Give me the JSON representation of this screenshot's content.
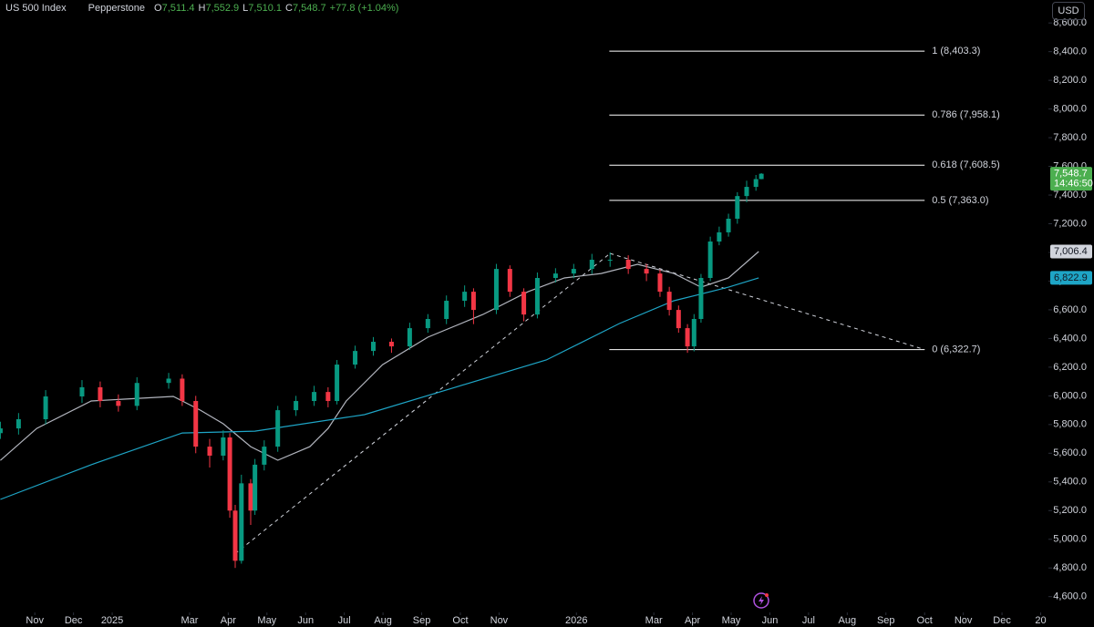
{
  "chart_data": {
    "type": "candlestick",
    "title": "US 500 Index",
    "source": "Pepperstone",
    "ohlc": [
      {
        "key": "O",
        "label": "7,511.4"
      },
      {
        "key": "H",
        "label": "7,552.9"
      },
      {
        "key": "L",
        "label": "7,510.1"
      },
      {
        "key": "C",
        "label": "7,548.7"
      }
    ],
    "change": "+77.8 (+1.04%)",
    "currency": "USD",
    "up_color": "#089981",
    "down_color": "#f23645",
    "x": [
      -0.89,
      -0.42,
      0.28,
      1.22,
      1.69,
      2.16,
      2.64,
      3.46,
      3.81,
      4.16,
      4.52,
      4.87,
      5.04,
      5.18,
      5.34,
      5.58,
      5.69,
      5.93,
      6.28,
      6.75,
      7.22,
      7.58,
      7.81,
      8.28,
      8.75,
      9.22,
      9.69,
      10.16,
      10.64,
      11.11,
      11.34,
      11.93,
      12.28,
      12.64,
      12.99,
      13.46,
      13.93,
      14.4,
      14.87,
      15.34,
      15.81,
      16.16,
      16.4,
      16.64,
      16.87,
      17.04,
      17.22,
      17.46,
      17.69,
      17.93,
      18.16,
      18.4,
      18.64,
      18.78
    ],
    "open": [
      5740,
      5773,
      5837,
      5996,
      6060,
      5964,
      5930,
      6090,
      6120,
      5964,
      5646,
      5583,
      5710,
      5200,
      4850,
      5390,
      5200,
      5520,
      5646,
      5900,
      5964,
      6027,
      5964,
      6218,
      6313,
      6377,
      6345,
      6472,
      6536,
      6663,
      6726,
      6599,
      6885,
      6726,
      6567,
      6822,
      6853,
      6885,
      6949,
      6949,
      6885,
      6853,
      6726,
      6599,
      6472,
      6345,
      6536,
      6822,
      7076,
      7140,
      7235,
      7393,
      7457,
      7511.4
    ],
    "high": [
      5820,
      5880,
      6040,
      6110,
      6100,
      6010,
      6130,
      6160,
      6150,
      6000,
      5700,
      5760,
      5740,
      5240,
      5450,
      5420,
      5560,
      5690,
      5930,
      6000,
      6070,
      6060,
      6250,
      6350,
      6410,
      6400,
      6510,
      6570,
      6700,
      6770,
      6750,
      6920,
      6910,
      6750,
      6860,
      6890,
      6920,
      6990,
      7000,
      6980,
      6920,
      6880,
      6760,
      6630,
      6500,
      6570,
      6850,
      7110,
      7180,
      7270,
      7420,
      7500,
      7540,
      7552.9
    ],
    "low": [
      5700,
      5730,
      5800,
      5950,
      5920,
      5890,
      5900,
      6050,
      5930,
      5600,
      5500,
      5550,
      5150,
      4800,
      4830,
      5100,
      5170,
      5480,
      5610,
      5860,
      5930,
      5920,
      5940,
      6190,
      6280,
      6300,
      6320,
      6440,
      6500,
      6620,
      6500,
      6570,
      6690,
      6520,
      6540,
      6790,
      6820,
      6850,
      6900,
      6850,
      6800,
      6690,
      6560,
      6440,
      6300,
      6310,
      6510,
      6800,
      7050,
      7110,
      7200,
      7350,
      7430,
      7510.1
    ],
    "close": [
      5773,
      5837,
      5996,
      6060,
      5964,
      5930,
      6090,
      6120,
      5964,
      5646,
      5583,
      5710,
      5200,
      4850,
      5390,
      5200,
      5520,
      5646,
      5900,
      5964,
      6027,
      5964,
      6218,
      6313,
      6377,
      6345,
      6472,
      6536,
      6663,
      6726,
      6599,
      6885,
      6726,
      6567,
      6822,
      6853,
      6885,
      6949,
      6949,
      6885,
      6853,
      6726,
      6599,
      6472,
      6345,
      6536,
      6822,
      7076,
      7140,
      7235,
      7393,
      7457,
      7511.4,
      7548.7
    ],
    "series": [
      {
        "color": "#b2b5be",
        "x": [
          -0.89,
          0.05,
          1.46,
          3.58,
          4.28,
          4.87,
          5.58,
          6.28,
          7.11,
          7.58,
          8.05,
          8.99,
          10.16,
          11.58,
          12.75,
          13.69,
          14.64,
          15.58,
          16.52,
          17.22,
          17.93,
          18.71
        ],
        "values": [
          5550,
          5773,
          5964,
          5996,
          5900,
          5805,
          5646,
          5551,
          5646,
          5773,
          5964,
          6218,
          6409,
          6567,
          6726,
          6822,
          6853,
          6917,
          6853,
          6758,
          6822,
          7006.4
        ]
      },
      {
        "color": "#1ea5c6",
        "x": [
          -0.89,
          1.46,
          3.81,
          5.69,
          8.52,
          10.87,
          13.22,
          15.11,
          16.52,
          17.93,
          18.71
        ],
        "values": [
          5278,
          5520,
          5741,
          5754,
          5869,
          6060,
          6250,
          6504,
          6663,
          6758,
          6822.9
        ]
      }
    ],
    "fib": {
      "x_range": [
        14.85,
        23.0
      ],
      "color": "#ffffff",
      "levels": [
        {
          "value": 8403.3,
          "label": "1 (8,403.3)"
        },
        {
          "value": 7958.1,
          "label": "0.786 (7,958.1)"
        },
        {
          "value": 7608.5,
          "label": "0.618 (7,608.5)"
        },
        {
          "value": 7363.0,
          "label": "0.5 (7,363.0)"
        },
        {
          "value": 6322.7,
          "label": "0 (6,322.7)"
        }
      ]
    },
    "trendlines": [
      {
        "x": [
          5.18,
          14.87
        ],
        "values": [
          4900,
          6993
        ]
      },
      {
        "x": [
          14.87,
          23.0
        ],
        "values": [
          6993,
          6322.7
        ]
      }
    ],
    "price_tags": [
      {
        "value": 7548.7,
        "label": "7,548.7",
        "time": "14:46:50",
        "color": "#4caf50",
        "text_color": "#ffffff"
      },
      {
        "value": 7006.4,
        "label": "7,006.4",
        "color": "#d1d4dc",
        "text_color": "#131722"
      },
      {
        "value": 6822.9,
        "label": "6,822.9",
        "color": "#1ea5c6",
        "text_color": "#131722"
      }
    ],
    "xlim": [
      -0.9,
      26.2
    ],
    "xticks": [
      {
        "value": 0,
        "label": "Nov"
      },
      {
        "value": 1,
        "label": "Dec"
      },
      {
        "value": 2,
        "label": "2025"
      },
      {
        "value": 4,
        "label": "Mar"
      },
      {
        "value": 5,
        "label": "Apr"
      },
      {
        "value": 6,
        "label": "May"
      },
      {
        "value": 7,
        "label": "Jun"
      },
      {
        "value": 8,
        "label": "Jul"
      },
      {
        "value": 9,
        "label": "Aug"
      },
      {
        "value": 10,
        "label": "Sep"
      },
      {
        "value": 11,
        "label": "Oct"
      },
      {
        "value": 12,
        "label": "Nov"
      },
      {
        "value": 14,
        "label": "2026"
      },
      {
        "value": 16,
        "label": "Mar"
      },
      {
        "value": 17,
        "label": "Apr"
      },
      {
        "value": 18,
        "label": "May"
      },
      {
        "value": 19,
        "label": "Jun"
      },
      {
        "value": 20,
        "label": "Jul"
      },
      {
        "value": 21,
        "label": "Aug"
      },
      {
        "value": 22,
        "label": "Sep"
      },
      {
        "value": 23,
        "label": "Oct"
      },
      {
        "value": 24,
        "label": "Nov"
      },
      {
        "value": 25,
        "label": "Dec"
      },
      {
        "value": 26,
        "label": "20"
      }
    ],
    "ylim": [
      4490,
      8760
    ],
    "yticks": [
      {
        "value": 4600,
        "label": "4,600.0"
      },
      {
        "value": 4800,
        "label": "4,800.0"
      },
      {
        "value": 5000,
        "label": "5,000.0"
      },
      {
        "value": 5200,
        "label": "5,200.0"
      },
      {
        "value": 5400,
        "label": "5,400.0"
      },
      {
        "value": 5600,
        "label": "5,600.0"
      },
      {
        "value": 5800,
        "label": "5,800.0"
      },
      {
        "value": 6000,
        "label": "6,000.0"
      },
      {
        "value": 6200,
        "label": "6,200.0"
      },
      {
        "value": 6400,
        "label": "6,400.0"
      },
      {
        "value": 6600,
        "label": "6,600.0"
      },
      {
        "value": 6800,
        "label": "6,800.0"
      },
      {
        "value": 7000,
        "label": "7,000.0"
      },
      {
        "value": 7200,
        "label": "7,200.0"
      },
      {
        "value": 7400,
        "label": "7,400.0"
      },
      {
        "value": 7600,
        "label": "7,600.0"
      },
      {
        "value": 7800,
        "label": "7,800.0"
      },
      {
        "value": 8000,
        "label": "8,000.0"
      },
      {
        "value": 8200,
        "label": "8,200.0"
      },
      {
        "value": 8400,
        "label": "8,400.0"
      },
      {
        "value": 8600,
        "label": "8,600.0"
      }
    ]
  }
}
